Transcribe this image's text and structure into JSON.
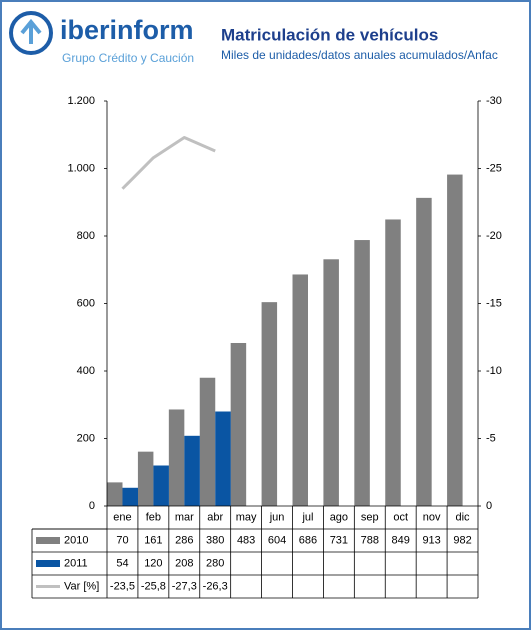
{
  "chart_data": {
    "type": "bar",
    "brand": "iberinform",
    "tagline": "Grupo Crédito y Caución",
    "title": "Matriculación de vehículos",
    "subtitle": "Miles de unidades/datos anuales acumulados/Anfac",
    "categories": [
      "ene",
      "feb",
      "mar",
      "abr",
      "may",
      "jun",
      "jul",
      "ago",
      "sep",
      "oct",
      "nov",
      "dic"
    ],
    "series": [
      {
        "name": "2010",
        "type": "bar",
        "color": "#808080",
        "values": [
          70,
          161,
          286,
          380,
          483,
          604,
          686,
          731,
          788,
          849,
          913,
          982
        ]
      },
      {
        "name": "2011",
        "type": "bar",
        "color": "#0a55a3",
        "values": [
          54,
          120,
          208,
          280,
          null,
          null,
          null,
          null,
          null,
          null,
          null,
          null
        ]
      },
      {
        "name": "Var [%]",
        "type": "line",
        "axis": "y2",
        "color": "#c0c0c0",
        "values": [
          -23.5,
          -25.8,
          -27.3,
          -26.3,
          null,
          null,
          null,
          null,
          null,
          null,
          null,
          null
        ],
        "value_labels": [
          "-23,5",
          "-25,8",
          "-27,3",
          "-26,3",
          null,
          null,
          null,
          null,
          null,
          null,
          null,
          null
        ]
      }
    ],
    "ylim": [
      0,
      1200
    ],
    "yticks": [
      0,
      200,
      400,
      600,
      800,
      {
        "value": 1000,
        "label": "1.000"
      },
      {
        "value": 1200,
        "label": "1.200"
      }
    ],
    "y2lim": [
      0,
      -30
    ],
    "y2ticks": [
      0,
      -5,
      -10,
      -15,
      -20,
      -25,
      -30
    ]
  }
}
